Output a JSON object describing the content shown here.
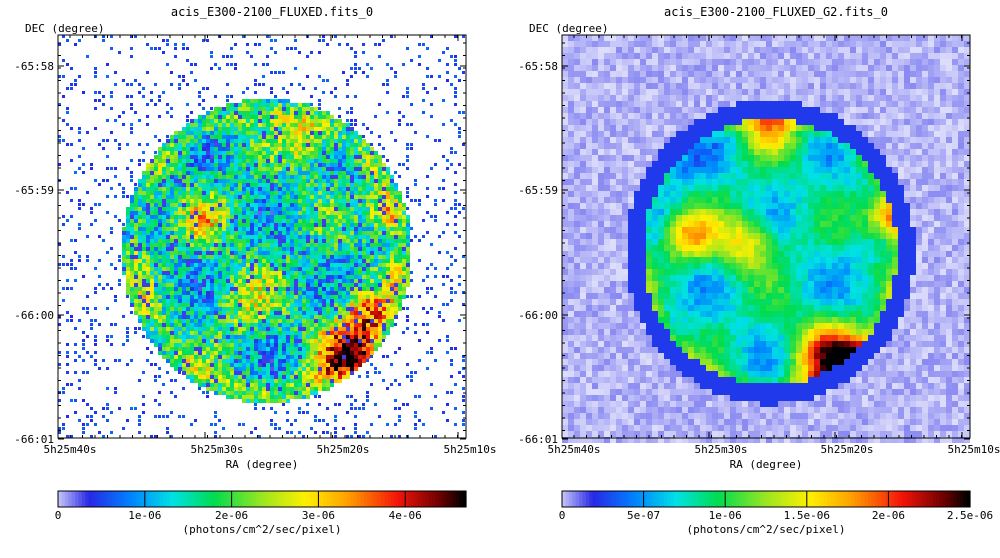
{
  "chart_data": [
    {
      "type": "heatmap",
      "title": "acis_E300-2100_FLUXED.fits_0",
      "xlabel": "RA (degree)",
      "ylabel": "DEC (degree)",
      "x_ticks": [
        "5h25m40s",
        "5h25m30s",
        "5h25m20s",
        "5h25m10s"
      ],
      "y_ticks": [
        "-65:58",
        "-65:59",
        "-66:00",
        "-66:01"
      ],
      "colorbar": {
        "label": "(photons/cm^2/sec/pixel)",
        "ticks": [
          "0",
          "1e-06",
          "2e-06",
          "3e-06",
          "4e-06"
        ],
        "range": [
          0,
          4.7e-06
        ]
      },
      "style": "raw"
    },
    {
      "type": "heatmap",
      "title": "acis_E300-2100_FLUXED_G2.fits_0",
      "xlabel": "RA (degree)",
      "ylabel": "DEC (degree)",
      "x_ticks": [
        "5h25m40s",
        "5h25m30s",
        "5h25m20s",
        "5h25m10s"
      ],
      "y_ticks": [
        "-65:58",
        "-65:59",
        "-66:00",
        "-66:01"
      ],
      "colorbar": {
        "label": "(photons/cm^2/sec/pixel)",
        "ticks": [
          "0",
          "5e-07",
          "1e-06",
          "1.5e-06",
          "2e-06",
          "2.5e-06"
        ],
        "range": [
          0,
          2.5e-06
        ]
      },
      "style": "smoothed"
    }
  ]
}
